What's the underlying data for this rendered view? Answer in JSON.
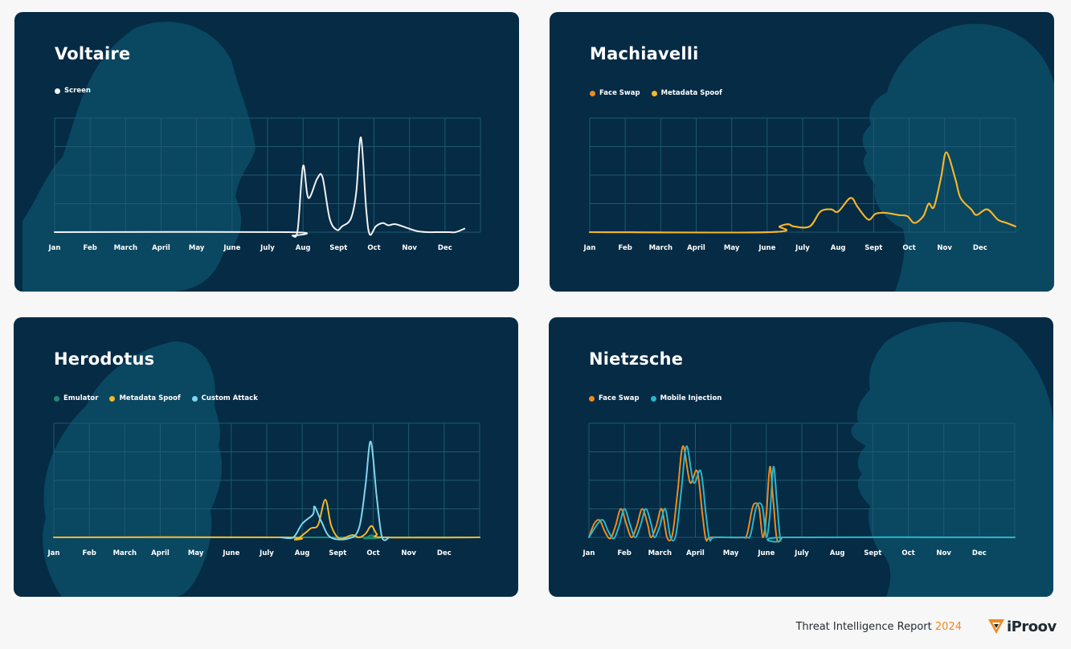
{
  "footer": {
    "report_label": "Threat Intelligence Report",
    "report_year": "2024",
    "brand_name": "iProov"
  },
  "colors": {
    "card_background": "#052b45",
    "grid": "#1e5a70",
    "screen": "#f2f2f2",
    "face_swap": "#f08a1d",
    "metadata_spoof": "#f5b82a",
    "emulator": "#1e8a6e",
    "custom_attack": "#7fd6ee",
    "mobile_injection": "#2ab6c9",
    "accent": "#f08a1d"
  },
  "chart_data": [
    {
      "type": "line",
      "title": "Voltaire",
      "categories": [
        "Jan",
        "Feb",
        "March",
        "April",
        "May",
        "June",
        "July",
        "Aug",
        "Sept",
        "Oct",
        "Nov",
        "Dec"
      ],
      "ylim": [
        0,
        100
      ],
      "grid": true,
      "legend_position": "top-left",
      "series": [
        {
          "name": "Screen",
          "color": "#f2f2f2",
          "points": [
            [
              0,
              0
            ],
            [
              6.6,
              0
            ],
            [
              6.7,
              -3
            ],
            [
              6.85,
              2
            ],
            [
              7.0,
              58
            ],
            [
              7.15,
              30
            ],
            [
              7.4,
              47
            ],
            [
              7.55,
              48
            ],
            [
              7.75,
              12
            ],
            [
              7.95,
              2
            ],
            [
              8.1,
              5
            ],
            [
              8.35,
              12
            ],
            [
              8.5,
              35
            ],
            [
              8.63,
              83
            ],
            [
              8.78,
              20
            ],
            [
              8.88,
              -2
            ],
            [
              9.05,
              5
            ],
            [
              9.25,
              8
            ],
            [
              9.4,
              6
            ],
            [
              9.6,
              7
            ],
            [
              9.9,
              4
            ],
            [
              10.2,
              1
            ],
            [
              10.5,
              0
            ],
            [
              10.8,
              0
            ],
            [
              11.1,
              0
            ],
            [
              11.3,
              0
            ],
            [
              11.55,
              3
            ]
          ]
        }
      ]
    },
    {
      "type": "line",
      "title": "Machiavelli",
      "categories": [
        "Jan",
        "Feb",
        "March",
        "April",
        "May",
        "June",
        "July",
        "Aug",
        "Sept",
        "Oct",
        "Nov",
        "Dec"
      ],
      "ylim": [
        0,
        100
      ],
      "grid": true,
      "legend_position": "top-left",
      "series": [
        {
          "name": "Face Swap",
          "color": "#f08a1d",
          "points": [
            [
              0,
              0
            ],
            [
              5.1,
              0
            ],
            [
              5.35,
              5
            ],
            [
              5.6,
              7
            ],
            [
              5.75,
              5
            ],
            [
              6.2,
              5
            ],
            [
              6.5,
              18
            ],
            [
              6.8,
              20
            ],
            [
              7.0,
              18
            ],
            [
              7.35,
              30
            ],
            [
              7.55,
              22
            ],
            [
              7.85,
              11
            ],
            [
              8.05,
              16
            ],
            [
              8.3,
              17
            ],
            [
              8.7,
              15
            ],
            [
              8.95,
              14
            ],
            [
              9.15,
              8
            ],
            [
              9.4,
              14
            ],
            [
              9.55,
              25
            ],
            [
              9.7,
              22
            ],
            [
              9.9,
              48
            ],
            [
              10.05,
              70
            ],
            [
              10.3,
              47
            ],
            [
              10.45,
              30
            ],
            [
              10.75,
              20
            ],
            [
              10.9,
              15
            ],
            [
              11.2,
              20
            ],
            [
              11.5,
              11
            ],
            [
              11.75,
              8
            ],
            [
              12,
              5
            ]
          ]
        },
        {
          "name": "Metadata Spoof",
          "color": "#f5b82a",
          "points": [
            [
              0,
              0
            ],
            [
              5.1,
              0
            ],
            [
              5.35,
              5
            ],
            [
              5.6,
              7
            ],
            [
              5.75,
              5
            ],
            [
              6.2,
              5
            ],
            [
              6.5,
              18
            ],
            [
              6.8,
              20
            ],
            [
              7.0,
              18
            ],
            [
              7.35,
              30
            ],
            [
              7.55,
              22
            ],
            [
              7.85,
              11
            ],
            [
              8.05,
              16
            ],
            [
              8.3,
              17
            ],
            [
              8.7,
              15
            ],
            [
              8.95,
              14
            ],
            [
              9.15,
              8
            ],
            [
              9.4,
              14
            ],
            [
              9.55,
              25
            ],
            [
              9.7,
              22
            ],
            [
              9.9,
              48
            ],
            [
              10.05,
              70
            ],
            [
              10.3,
              47
            ],
            [
              10.45,
              30
            ],
            [
              10.75,
              20
            ],
            [
              10.9,
              15
            ],
            [
              11.2,
              20
            ],
            [
              11.5,
              11
            ],
            [
              11.75,
              8
            ],
            [
              12,
              5
            ]
          ]
        }
      ]
    },
    {
      "type": "line",
      "title": "Herodotus",
      "categories": [
        "Jan",
        "Feb",
        "March",
        "April",
        "May",
        "June",
        "July",
        "Aug",
        "Sept",
        "Oct",
        "Nov",
        "Dec"
      ],
      "ylim": [
        0,
        100
      ],
      "grid": true,
      "legend_position": "top-left",
      "series": [
        {
          "name": "Emulator",
          "color": "#1e8a6e",
          "points": [
            [
              0,
              0
            ],
            [
              8.5,
              0
            ],
            [
              8.75,
              -1
            ],
            [
              8.95,
              2
            ],
            [
              9.05,
              -1
            ],
            [
              9.3,
              0
            ],
            [
              12,
              0
            ]
          ]
        },
        {
          "name": "Metadata Spoof",
          "color": "#f5b82a",
          "points": [
            [
              0,
              0
            ],
            [
              6.4,
              0
            ],
            [
              6.8,
              -2
            ],
            [
              7.05,
              3
            ],
            [
              7.25,
              8
            ],
            [
              7.45,
              11
            ],
            [
              7.65,
              33
            ],
            [
              7.82,
              10
            ],
            [
              8.05,
              -1
            ],
            [
              8.4,
              2
            ],
            [
              8.6,
              0
            ],
            [
              8.78,
              3
            ],
            [
              8.95,
              10
            ],
            [
              9.1,
              3
            ],
            [
              9.3,
              0
            ],
            [
              12,
              0
            ]
          ]
        },
        {
          "name": "Custom Attack",
          "color": "#7fd6ee",
          "points": [
            [
              6.4,
              0
            ],
            [
              6.75,
              0
            ],
            [
              7.0,
              12
            ],
            [
              7.3,
              20
            ],
            [
              7.35,
              27
            ],
            [
              7.55,
              13
            ],
            [
              7.8,
              0
            ],
            [
              8.3,
              -1
            ],
            [
              8.6,
              8
            ],
            [
              8.78,
              45
            ],
            [
              8.93,
              84
            ],
            [
              9.1,
              35
            ],
            [
              9.25,
              0
            ],
            [
              9.45,
              0
            ]
          ]
        }
      ]
    },
    {
      "type": "line",
      "title": "Nietzsche",
      "categories": [
        "Jan",
        "Feb",
        "March",
        "April",
        "May",
        "June",
        "July",
        "Aug",
        "Sept",
        "Oct",
        "Nov",
        "Dec"
      ],
      "ylim": [
        0,
        100
      ],
      "grid": true,
      "legend_position": "top-left",
      "series": [
        {
          "name": "Face Swap",
          "color": "#f08a1d",
          "points": [
            [
              0,
              0
            ],
            [
              0.15,
              12
            ],
            [
              0.3,
              15
            ],
            [
              0.45,
              5
            ],
            [
              0.6,
              -1
            ],
            [
              0.75,
              10
            ],
            [
              0.9,
              25
            ],
            [
              1.05,
              12
            ],
            [
              1.2,
              0
            ],
            [
              1.35,
              10
            ],
            [
              1.5,
              25
            ],
            [
              1.65,
              12
            ],
            [
              1.75,
              0
            ],
            [
              1.9,
              10
            ],
            [
              2.05,
              25
            ],
            [
              2.2,
              0
            ],
            [
              2.35,
              2
            ],
            [
              2.5,
              40
            ],
            [
              2.65,
              80
            ],
            [
              2.85,
              48
            ],
            [
              3.05,
              58
            ],
            [
              3.2,
              20
            ],
            [
              3.3,
              -2
            ],
            [
              3.45,
              0
            ],
            [
              4.3,
              0
            ],
            [
              4.45,
              2
            ],
            [
              4.6,
              25
            ],
            [
              4.7,
              30
            ],
            [
              4.8,
              25
            ],
            [
              4.9,
              0
            ],
            [
              5.0,
              20
            ],
            [
              5.1,
              62
            ],
            [
              5.2,
              30
            ],
            [
              5.3,
              -2
            ],
            [
              5.45,
              0
            ]
          ]
        },
        {
          "name": "Mobile Injection",
          "color": "#2ab6c9",
          "points": [
            [
              0,
              0
            ],
            [
              0.25,
              12
            ],
            [
              0.4,
              15
            ],
            [
              0.55,
              5
            ],
            [
              0.7,
              -1
            ],
            [
              0.85,
              10
            ],
            [
              1.0,
              25
            ],
            [
              1.15,
              12
            ],
            [
              1.3,
              0
            ],
            [
              1.45,
              10
            ],
            [
              1.6,
              25
            ],
            [
              1.75,
              12
            ],
            [
              1.85,
              0
            ],
            [
              2.0,
              10
            ],
            [
              2.15,
              25
            ],
            [
              2.3,
              0
            ],
            [
              2.45,
              2
            ],
            [
              2.6,
              40
            ],
            [
              2.75,
              80
            ],
            [
              2.95,
              48
            ],
            [
              3.15,
              58
            ],
            [
              3.3,
              20
            ],
            [
              3.4,
              -2
            ],
            [
              3.55,
              0
            ],
            [
              4.4,
              0
            ],
            [
              4.55,
              2
            ],
            [
              4.7,
              25
            ],
            [
              4.8,
              30
            ],
            [
              4.9,
              25
            ],
            [
              5.0,
              0
            ],
            [
              5.1,
              20
            ],
            [
              5.2,
              62
            ],
            [
              5.3,
              30
            ],
            [
              5.4,
              -2
            ],
            [
              5.55,
              0
            ],
            [
              12,
              0
            ]
          ]
        }
      ]
    }
  ]
}
